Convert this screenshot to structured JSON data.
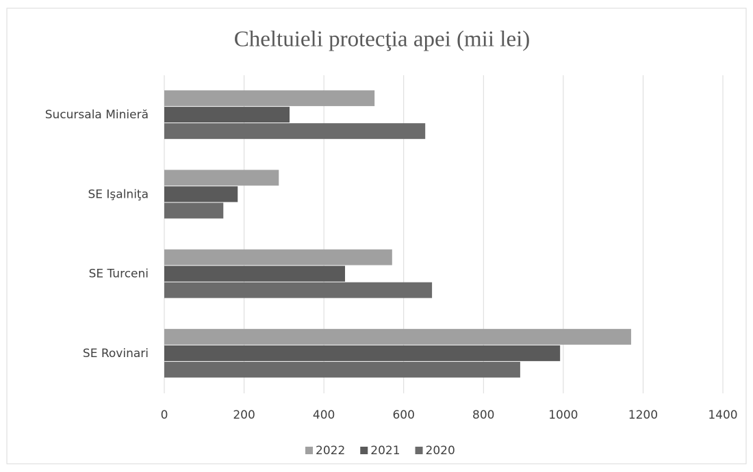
{
  "chart_data": {
    "type": "bar",
    "orientation": "horizontal",
    "title": "Cheltuieli protecţia apei  (mii lei)",
    "categories": [
      "Sucursala Minieră",
      "SE Işalniţa",
      "SE Turceni",
      "SE Rovinari"
    ],
    "series": [
      {
        "name": "2022",
        "color": "#a0a0a0",
        "values": [
          527,
          287,
          571,
          1170
        ]
      },
      {
        "name": "2021",
        "color": "#5a5a5a",
        "values": [
          314,
          184,
          453,
          992
        ]
      },
      {
        "name": "2020",
        "color": "#6b6b6b",
        "values": [
          654,
          148,
          671,
          892
        ]
      }
    ],
    "xlim": [
      0,
      1400
    ],
    "xticks": [
      0,
      200,
      400,
      600,
      800,
      1000,
      1200,
      1400
    ],
    "grid": true,
    "legend": "bottom"
  }
}
